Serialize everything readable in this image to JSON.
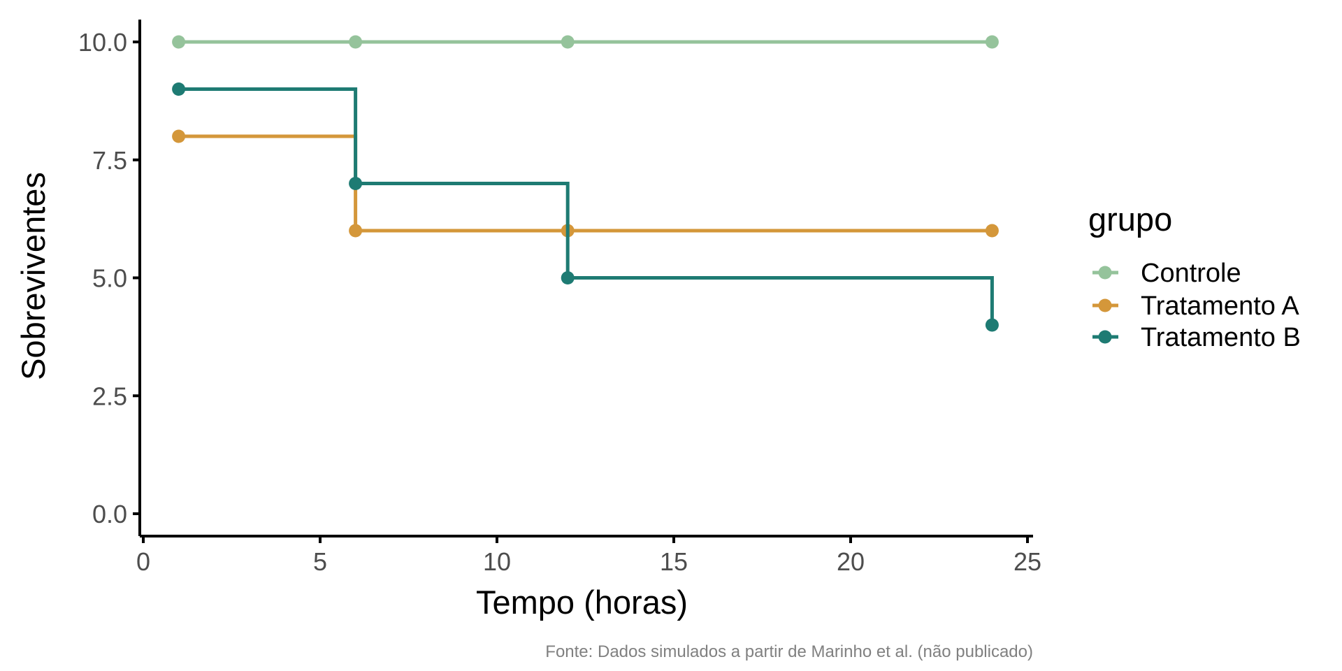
{
  "chart_data": {
    "type": "line",
    "step": true,
    "xlabel": "Tempo (horas)",
    "ylabel": "Sobreviventes",
    "caption": "Fonte: Dados simulados a partir de Marinho et al. (não publicado)",
    "legend_title": "grupo",
    "legend_position": "right",
    "grid": false,
    "xlim": [
      0,
      25
    ],
    "ylim": [
      0,
      10
    ],
    "x_ticks": [
      0,
      5,
      10,
      15,
      20,
      25
    ],
    "y_ticks": [
      0.0,
      2.5,
      5.0,
      7.5,
      10.0
    ],
    "x_tick_labels": [
      "0",
      "5",
      "10",
      "15",
      "20",
      "25"
    ],
    "y_tick_labels": [
      "0.0",
      "2.5",
      "5.0",
      "7.5",
      "10.0"
    ],
    "series": [
      {
        "name": "Controle",
        "color": "#95c39b",
        "x": [
          1,
          6,
          12,
          24
        ],
        "y": [
          10,
          10,
          10,
          10
        ]
      },
      {
        "name": "Tratamento A",
        "color": "#d4973a",
        "x": [
          1,
          6,
          12,
          24
        ],
        "y": [
          8,
          6,
          6,
          6
        ]
      },
      {
        "name": "Tratamento B",
        "color": "#1e7b73",
        "x": [
          1,
          6,
          12,
          24
        ],
        "y": [
          9,
          7,
          5,
          4
        ]
      }
    ]
  }
}
